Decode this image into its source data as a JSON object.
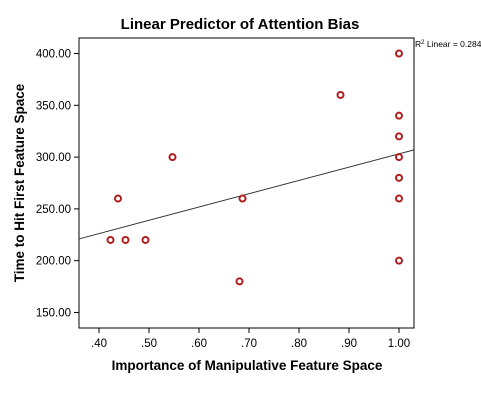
{
  "chart_data": {
    "type": "scatter",
    "title": "Linear Predictor of Attention Bias",
    "xlabel": "Importance of Manipulative Feature Space",
    "ylabel": "Time to Hit First Feature Space",
    "xlim": [
      0.36,
      1.03
    ],
    "ylim": [
      135,
      415
    ],
    "x_ticks": [
      0.4,
      0.5,
      0.6,
      0.7,
      0.8,
      0.9,
      1.0
    ],
    "x_tick_labels": [
      ".40",
      ".50",
      ".60",
      ".70",
      ".80",
      ".90",
      "1.00"
    ],
    "y_ticks": [
      150,
      200,
      250,
      300,
      350,
      400
    ],
    "y_tick_labels": [
      "150.00",
      "200.00",
      "250.00",
      "300.00",
      "350.00",
      "400.00"
    ],
    "points": [
      {
        "x": 0.423,
        "y": 220
      },
      {
        "x": 0.438,
        "y": 260
      },
      {
        "x": 0.453,
        "y": 220
      },
      {
        "x": 0.493,
        "y": 220
      },
      {
        "x": 0.547,
        "y": 300
      },
      {
        "x": 0.681,
        "y": 180
      },
      {
        "x": 0.687,
        "y": 260
      },
      {
        "x": 0.883,
        "y": 360
      },
      {
        "x": 1.0,
        "y": 400
      },
      {
        "x": 1.0,
        "y": 340
      },
      {
        "x": 1.0,
        "y": 320
      },
      {
        "x": 1.0,
        "y": 300
      },
      {
        "x": 1.0,
        "y": 280
      },
      {
        "x": 1.0,
        "y": 260
      },
      {
        "x": 1.0,
        "y": 200
      }
    ],
    "fit_line": {
      "x": [
        0.36,
        1.03
      ],
      "y": [
        221,
        307
      ]
    },
    "fit_label_prefix": "R",
    "fit_label_sup": "2",
    "fit_label_suffix": " Linear = 0.284",
    "marker_color": "#b01c1c",
    "line_color": "#333333",
    "grid": false,
    "legend": "none"
  }
}
